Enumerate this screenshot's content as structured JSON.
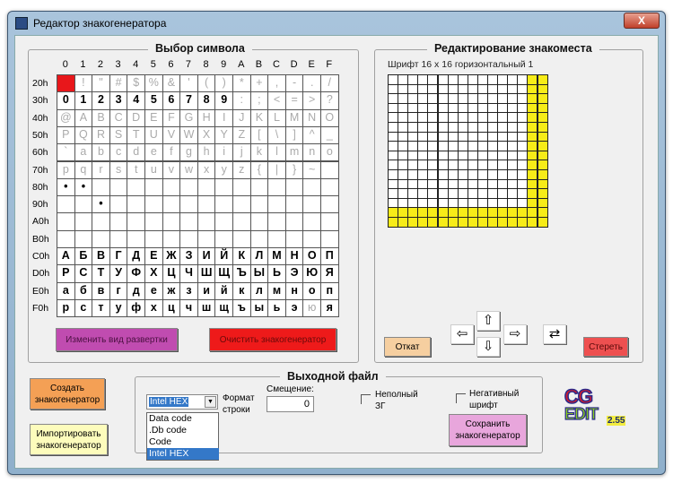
{
  "window": {
    "title": "Редактор знакогенератора",
    "close_label": "X"
  },
  "symbol_panel": {
    "title": "Выбор символа",
    "columns": [
      "0",
      "1",
      "2",
      "3",
      "4",
      "5",
      "6",
      "7",
      "8",
      "9",
      "A",
      "B",
      "C",
      "D",
      "E",
      "F"
    ],
    "selected": {
      "row": 0,
      "col": 0
    },
    "rows": [
      {
        "label": "20h",
        "cells": [
          "",
          " ! ",
          "\"",
          "#",
          "$",
          "%",
          "&",
          "'",
          "(",
          ")",
          "*",
          "+",
          ",",
          "-",
          ".",
          "/"
        ],
        "dim": true
      },
      {
        "label": "30h",
        "cells": [
          "0",
          "1",
          "2",
          "3",
          "4",
          "5",
          "6",
          "7",
          "8",
          "9",
          ":",
          ";",
          "<",
          "=",
          ">",
          "?"
        ],
        "dim_cells": [
          10,
          11,
          12,
          13,
          14,
          15
        ]
      },
      {
        "label": "40h",
        "cells": [
          "@",
          "A",
          "B",
          "C",
          "D",
          "E",
          "F",
          "G",
          "H",
          "I",
          "J",
          "K",
          "L",
          "M",
          "N",
          "O"
        ],
        "dim": true
      },
      {
        "label": "50h",
        "cells": [
          "P",
          "Q",
          "R",
          "S",
          "T",
          "U",
          "V",
          "W",
          "X",
          "Y",
          "Z",
          "[",
          "\\",
          "]",
          "^",
          "_"
        ],
        "dim": true
      },
      {
        "label": "60h",
        "cells": [
          "`",
          "a",
          "b",
          "c",
          "d",
          "e",
          "f",
          "g",
          "h",
          "i",
          "j",
          "k",
          "l",
          "m",
          "n",
          "o"
        ],
        "dim": true
      },
      {
        "label": "70h",
        "cells": [
          "p",
          "q",
          "r",
          "s",
          "t",
          "u",
          "v",
          "w",
          "x",
          "y",
          "z",
          "{",
          "|",
          "}",
          "~",
          ""
        ],
        "dim": true
      },
      {
        "label": "80h",
        "cells": [
          "•",
          "•",
          "",
          "",
          "",
          "",
          "",
          "",
          "",
          "",
          "",
          "",
          "",
          "",
          "",
          ""
        ]
      },
      {
        "label": "90h",
        "cells": [
          "",
          "",
          "•",
          "",
          "",
          "",
          "",
          "",
          "",
          "",
          "",
          "",
          "",
          "",
          "",
          ""
        ]
      },
      {
        "label": "A0h",
        "cells": [
          "",
          "",
          "",
          "",
          "",
          "",
          "",
          "",
          "",
          "",
          "",
          "",
          "",
          "",
          "",
          ""
        ]
      },
      {
        "label": "B0h",
        "cells": [
          "",
          "",
          "",
          "",
          "",
          "",
          "",
          "",
          "",
          "",
          "",
          "",
          "",
          "",
          "",
          ""
        ]
      },
      {
        "label": "C0h",
        "cells": [
          "А",
          "Б",
          "В",
          "Г",
          "Д",
          "Е",
          "Ж",
          "З",
          "И",
          "Й",
          "К",
          "Л",
          "М",
          "Н",
          "О",
          "П"
        ]
      },
      {
        "label": "D0h",
        "cells": [
          "Р",
          "С",
          "Т",
          "У",
          "Ф",
          "Х",
          "Ц",
          "Ч",
          "Ш",
          "Щ",
          "Ъ",
          "Ы",
          "Ь",
          "Э",
          "Ю",
          "Я"
        ]
      },
      {
        "label": "E0h",
        "cells": [
          "а",
          "б",
          "в",
          "г",
          "д",
          "е",
          "ж",
          "з",
          "и",
          "й",
          "к",
          "л",
          "м",
          "н",
          "о",
          "п"
        ]
      },
      {
        "label": "F0h",
        "cells": [
          "р",
          "с",
          "т",
          "у",
          "ф",
          "х",
          "ц",
          "ч",
          "ш",
          "щ",
          "ъ",
          "ы",
          "ь",
          "э",
          "ю",
          "я"
        ],
        "dim_cells": [
          14
        ]
      }
    ],
    "change_scan_label": "Изменить вид развертки",
    "clear_label": "Очистить знакогенератор"
  },
  "editor_panel": {
    "title": "Редактирование знакоместа",
    "font_label": "Шрифт 16 x 16 горизонтальный 1",
    "grid_size": 16,
    "highlighted_cols": [
      14,
      15
    ],
    "highlighted_rows": [
      14,
      15
    ],
    "undo_label": "Откат",
    "erase_label": "Стереть",
    "arrows": {
      "up": "⇧",
      "down": "⇩",
      "left": "⇦",
      "right": "⇨",
      "swap": "⇄"
    }
  },
  "colors": {
    "selected": "#e8171b",
    "highlight": "#f7ec18"
  },
  "actions": {
    "create_label": "Создать знакогенератор",
    "import_label": "Импортировать знакогенератор"
  },
  "output": {
    "title": "Выходной файл",
    "format_value": "Intel HEX",
    "format_label": "Формат строки",
    "format_options": [
      "Data code",
      ".Db code",
      "Code",
      "Intel HEX"
    ],
    "offset_label": "Смещение:",
    "offset_value": "0",
    "incomplete_label": "Неполный ЗГ",
    "incomplete_checked": false,
    "negative_label": "Негативный шрифт",
    "negative_checked": false,
    "save_label": "Сохранить знакогенератор"
  },
  "logo": {
    "line1": "CG",
    "line2": "EDIT",
    "version": "2.55"
  }
}
